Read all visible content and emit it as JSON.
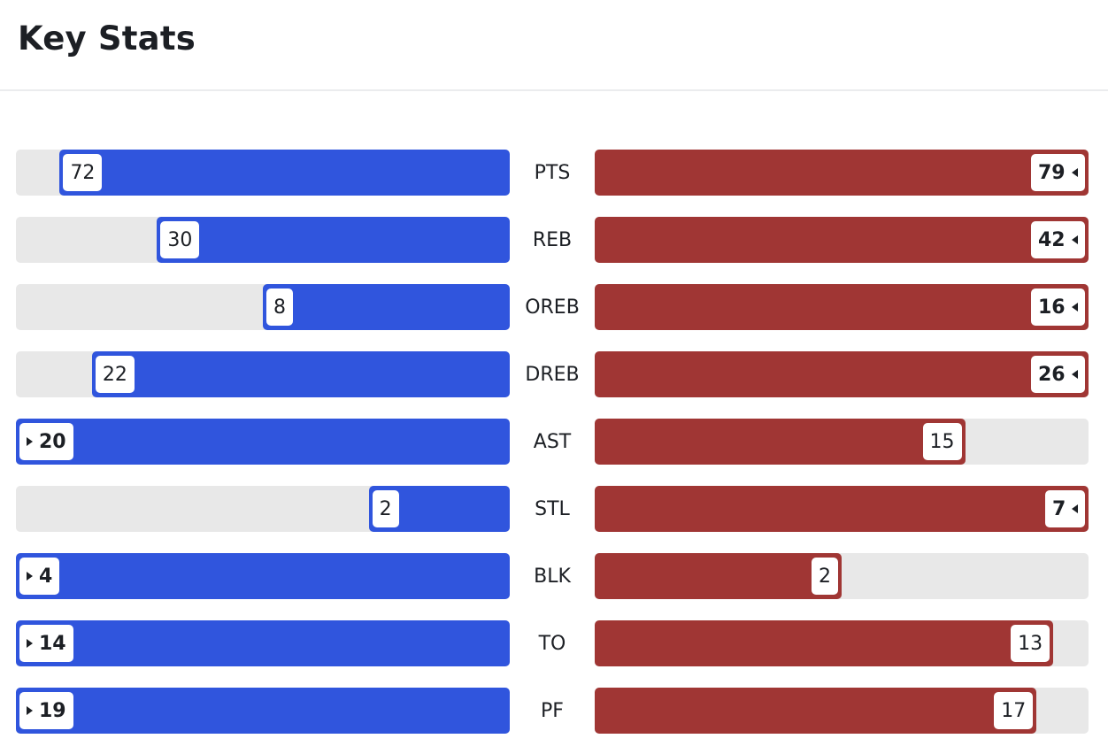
{
  "header": {
    "title": "Key Stats"
  },
  "colors": {
    "home": "#3055dd",
    "away": "#a03634",
    "track": "#e8e8e8"
  },
  "chart_data": {
    "type": "bar",
    "categories": [
      "PTS",
      "REB",
      "OREB",
      "DREB",
      "AST",
      "STL",
      "BLK",
      "TO",
      "PF"
    ],
    "series": [
      {
        "values": [
          72,
          30,
          8,
          22,
          20,
          2,
          4,
          14,
          19
        ]
      },
      {
        "values": [
          79,
          42,
          16,
          26,
          15,
          7,
          2,
          13,
          17
        ]
      }
    ]
  }
}
